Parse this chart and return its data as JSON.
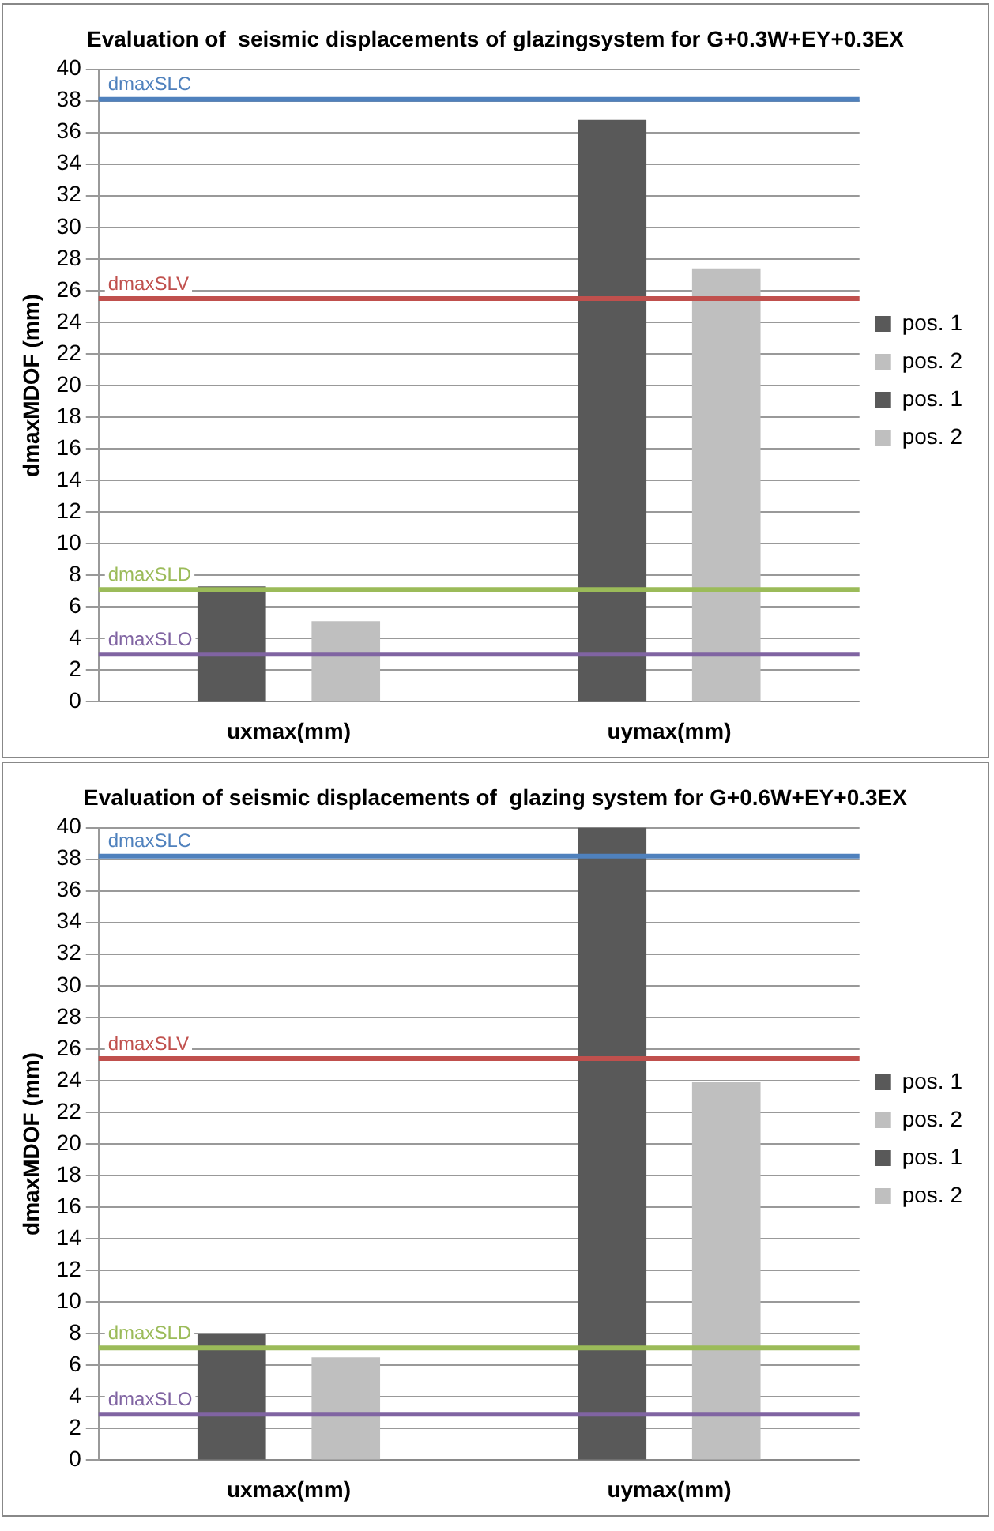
{
  "chart_data": [
    {
      "type": "bar",
      "title": "Evaluation of  seismic displacements of glazingsystem for G+0.3W+EY+0.3EX",
      "ylabel": "dmaxMDOF (mm)",
      "categories": [
        "uxmax(mm)",
        "uymax(mm)"
      ],
      "series": [
        {
          "name": "pos. 1",
          "color": "#595959",
          "values": [
            7.3,
            null
          ]
        },
        {
          "name": "pos. 2",
          "color": "#bfbfbf",
          "values": [
            5.1,
            null
          ]
        },
        {
          "name": "pos. 1",
          "color": "#595959",
          "values": [
            null,
            36.8
          ]
        },
        {
          "name": "pos. 2",
          "color": "#bfbfbf",
          "values": [
            null,
            27.4
          ]
        }
      ],
      "ylim": [
        0,
        40
      ],
      "yticks": [
        0,
        2,
        4,
        6,
        8,
        10,
        12,
        14,
        16,
        18,
        20,
        22,
        24,
        26,
        28,
        30,
        32,
        34,
        36,
        38,
        40
      ],
      "grid": "y",
      "legend": "right",
      "ref_lines": [
        {
          "axis": "y",
          "value": 38.1,
          "label": "dmaxSLC",
          "color": "#4f81bd"
        },
        {
          "axis": "y",
          "value": 25.5,
          "label": "dmaxSLV",
          "color": "#c0504d"
        },
        {
          "axis": "y",
          "value": 7.1,
          "label": "dmaxSLD",
          "color": "#9bbb59"
        },
        {
          "axis": "y",
          "value": 3.0,
          "label": "dmaxSLO",
          "color": "#8064a2"
        }
      ]
    },
    {
      "type": "bar",
      "title": "Evaluation of seismic displacements of  glazing system for G+0.6W+EY+0.3EX",
      "ylabel": "dmaxMDOF (mm)",
      "categories": [
        "uxmax(mm)",
        "uymax(mm)"
      ],
      "series": [
        {
          "name": "pos. 1",
          "color": "#595959",
          "values": [
            8.0,
            null
          ]
        },
        {
          "name": "pos. 2",
          "color": "#bfbfbf",
          "values": [
            6.5,
            null
          ]
        },
        {
          "name": "pos. 1",
          "color": "#595959",
          "values": [
            null,
            40
          ]
        },
        {
          "name": "pos. 2",
          "color": "#bfbfbf",
          "values": [
            null,
            23.9
          ]
        }
      ],
      "ylim": [
        0,
        40
      ],
      "yticks": [
        0,
        2,
        4,
        6,
        8,
        10,
        12,
        14,
        16,
        18,
        20,
        22,
        24,
        26,
        28,
        30,
        32,
        34,
        36,
        38,
        40
      ],
      "grid": "y",
      "legend": "right",
      "ref_lines": [
        {
          "axis": "y",
          "value": 38.2,
          "label": "dmaxSLC",
          "color": "#4f81bd"
        },
        {
          "axis": "y",
          "value": 25.4,
          "label": "dmaxSLV",
          "color": "#c0504d"
        },
        {
          "axis": "y",
          "value": 7.1,
          "label": "dmaxSLD",
          "color": "#9bbb59"
        },
        {
          "axis": "y",
          "value": 2.9,
          "label": "dmaxSLO",
          "color": "#8064a2"
        }
      ]
    }
  ]
}
